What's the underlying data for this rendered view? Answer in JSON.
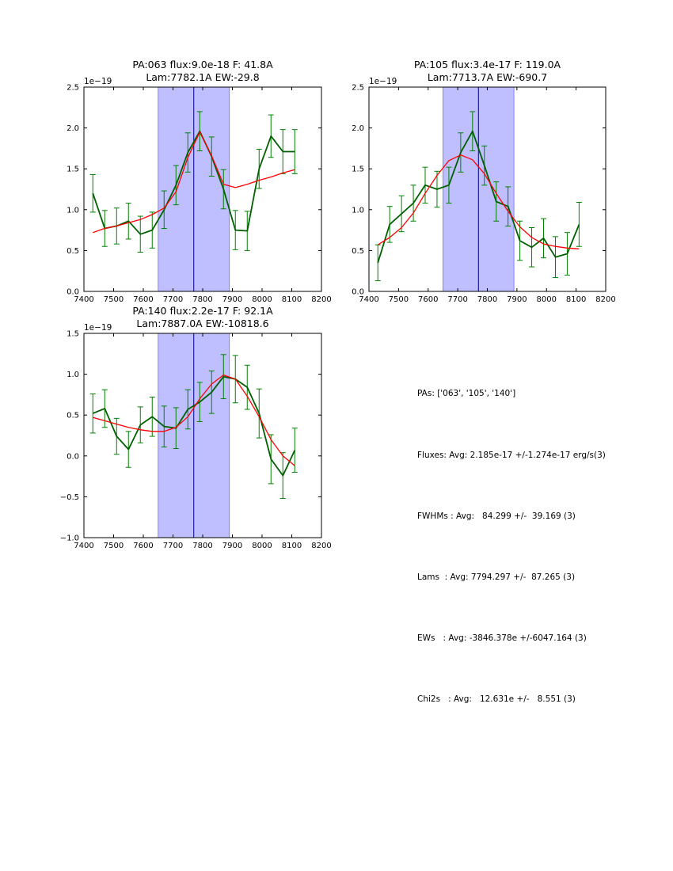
{
  "chart_data": [
    {
      "type": "line",
      "title": [
        "PA:063 flux:9.0e-18 F: 41.8A",
        "Lam:7782.1A EW:-29.8"
      ],
      "offset_label": "1e−19",
      "xlim": [
        7400,
        8200
      ],
      "ylim": [
        0.0,
        2.5
      ],
      "xticks": [
        "7400",
        "7500",
        "7600",
        "7700",
        "7800",
        "7900",
        "8000",
        "8100",
        "8200"
      ],
      "yticks": [
        "0.0",
        "0.5",
        "1.0",
        "1.5",
        "2.0",
        "2.5"
      ],
      "ytick_values": [
        0.0,
        0.5,
        1.0,
        1.5,
        2.0,
        2.5
      ],
      "shade": [
        7650,
        7890
      ],
      "vline": 7770,
      "x": [
        7430,
        7470,
        7510,
        7550,
        7590,
        7630,
        7670,
        7710,
        7750,
        7790,
        7830,
        7870,
        7910,
        7950,
        7990,
        8030,
        8070,
        8110
      ],
      "series": [
        {
          "name": "data",
          "color": "#006000",
          "values": [
            1.2,
            0.77,
            0.8,
            0.86,
            0.7,
            0.75,
            1.0,
            1.3,
            1.7,
            1.96,
            1.65,
            1.25,
            0.75,
            0.74,
            1.5,
            1.9,
            1.71,
            1.71
          ],
          "errors": [
            0.23,
            0.22,
            0.22,
            0.22,
            0.22,
            0.22,
            0.23,
            0.24,
            0.24,
            0.24,
            0.24,
            0.24,
            0.24,
            0.24,
            0.24,
            0.26,
            0.27,
            0.27
          ]
        },
        {
          "name": "fit",
          "color": "#ff0000",
          "values": [
            0.72,
            0.77,
            0.8,
            0.84,
            0.88,
            0.94,
            1.02,
            1.22,
            1.64,
            1.95,
            1.66,
            1.31,
            1.27,
            1.31,
            1.36,
            1.4,
            1.45,
            1.49
          ]
        }
      ]
    },
    {
      "type": "line",
      "title": [
        "PA:105 flux:3.4e-17 F: 119.0A",
        "Lam:7713.7A EW:-690.7"
      ],
      "offset_label": "1e−19",
      "xlim": [
        7400,
        8200
      ],
      "ylim": [
        0.0,
        2.5
      ],
      "xticks": [
        "7400",
        "7500",
        "7600",
        "7700",
        "7800",
        "7900",
        "8000",
        "8100",
        "8200"
      ],
      "yticks": [
        "0.0",
        "0.5",
        "1.0",
        "1.5",
        "2.0",
        "2.5"
      ],
      "ytick_values": [
        0.0,
        0.5,
        1.0,
        1.5,
        2.0,
        2.5
      ],
      "shade": [
        7650,
        7890
      ],
      "vline": 7770,
      "x": [
        7430,
        7470,
        7510,
        7550,
        7590,
        7630,
        7670,
        7710,
        7750,
        7790,
        7830,
        7870,
        7910,
        7950,
        7990,
        8030,
        8070,
        8110
      ],
      "series": [
        {
          "name": "data",
          "color": "#006000",
          "values": [
            0.35,
            0.82,
            0.95,
            1.08,
            1.3,
            1.25,
            1.3,
            1.7,
            1.96,
            1.54,
            1.1,
            1.04,
            0.62,
            0.54,
            0.65,
            0.42,
            0.46,
            0.82
          ],
          "errors": [
            0.22,
            0.22,
            0.22,
            0.22,
            0.22,
            0.22,
            0.22,
            0.24,
            0.24,
            0.24,
            0.24,
            0.24,
            0.24,
            0.24,
            0.24,
            0.25,
            0.26,
            0.27
          ]
        },
        {
          "name": "fit",
          "color": "#ff0000",
          "values": [
            0.57,
            0.66,
            0.78,
            0.96,
            1.2,
            1.42,
            1.6,
            1.67,
            1.61,
            1.44,
            1.2,
            0.98,
            0.79,
            0.66,
            0.58,
            0.55,
            0.53,
            0.52
          ]
        }
      ]
    },
    {
      "type": "line",
      "title": [
        "PA:140 flux:2.2e-17 F: 92.1A",
        "Lam:7887.0A EW:-10818.6"
      ],
      "offset_label": "1e−19",
      "xlim": [
        7400,
        8200
      ],
      "ylim": [
        -1.0,
        1.5
      ],
      "xticks": [
        "7400",
        "7500",
        "7600",
        "7700",
        "7800",
        "7900",
        "8000",
        "8100",
        "8200"
      ],
      "yticks": [
        "−1.0",
        "−0.5",
        "0.0",
        "0.5",
        "1.0",
        "1.5"
      ],
      "ytick_values": [
        -1.0,
        -0.5,
        0.0,
        0.5,
        1.0,
        1.5
      ],
      "shade": [
        7650,
        7890
      ],
      "vline": 7770,
      "x": [
        7430,
        7470,
        7510,
        7550,
        7590,
        7630,
        7670,
        7710,
        7750,
        7790,
        7830,
        7870,
        7910,
        7950,
        7990,
        8030,
        8070,
        8110
      ],
      "series": [
        {
          "name": "data",
          "color": "#006000",
          "values": [
            0.52,
            0.58,
            0.24,
            0.08,
            0.38,
            0.48,
            0.36,
            0.34,
            0.57,
            0.66,
            0.78,
            0.97,
            0.94,
            0.84,
            0.52,
            -0.04,
            -0.24,
            0.07
          ],
          "errors": [
            0.24,
            0.23,
            0.22,
            0.22,
            0.22,
            0.24,
            0.25,
            0.25,
            0.24,
            0.24,
            0.26,
            0.27,
            0.29,
            0.27,
            0.3,
            0.3,
            0.28,
            0.27
          ]
        },
        {
          "name": "fit",
          "color": "#ff0000",
          "values": [
            0.47,
            0.43,
            0.39,
            0.35,
            0.32,
            0.3,
            0.3,
            0.35,
            0.48,
            0.7,
            0.88,
            0.99,
            0.94,
            0.73,
            0.48,
            0.2,
            0.0,
            -0.12
          ]
        }
      ]
    }
  ],
  "stats": {
    "pas": "PAs: ['063', '105', '140']",
    "fluxes": "Fluxes: Avg: 2.185e-17 +/-1.274e-17 erg/s(3)",
    "fwhms": "FWHMs : Avg:   84.299 +/-  39.169 (3)",
    "lams": "Lams  : Avg: 7794.297 +/-  87.265 (3)",
    "ews": "EWs   : Avg: -3846.378e +/-6047.164 (3)",
    "chi2s": "Chi2s   : Avg:   12.631e +/-   8.551 (3)"
  }
}
